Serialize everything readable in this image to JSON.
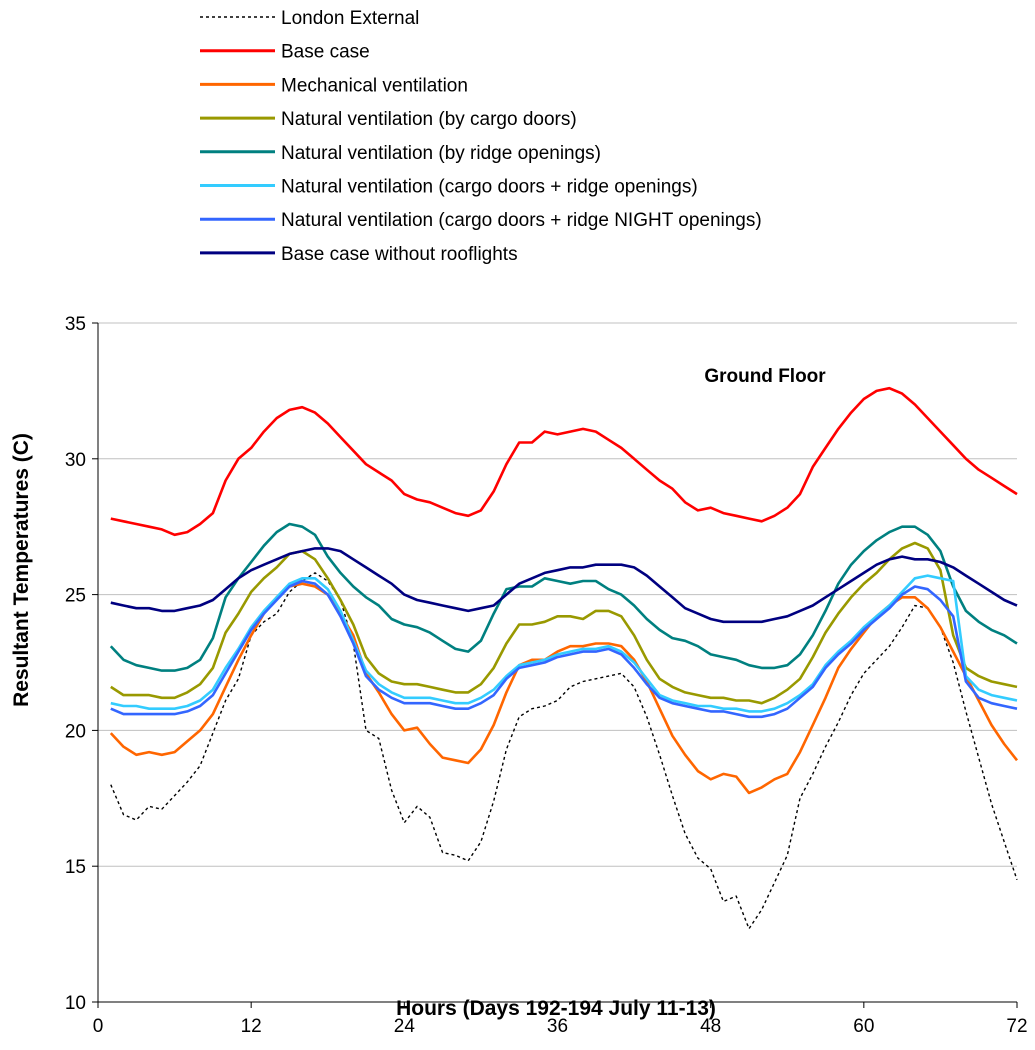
{
  "chart_data": {
    "type": "line",
    "title": "",
    "xlabel": "Hours (Days 192-194 July 11-13)",
    "ylabel": "Resultant Temperatures (C)",
    "xlim": [
      0,
      72
    ],
    "ylim": [
      10,
      35
    ],
    "xticks": [
      0,
      12,
      24,
      36,
      48,
      60,
      72
    ],
    "yticks": [
      10,
      15,
      20,
      25,
      30,
      35
    ],
    "grid": "horizontal",
    "legend_position": "top",
    "annotation": "Ground Floor",
    "series": [
      {
        "name": "London External",
        "color": "#000000",
        "dash": "dotted",
        "x": [
          1,
          2,
          3,
          4,
          5,
          6,
          7,
          8,
          9,
          10,
          11,
          12,
          13,
          14,
          15,
          16,
          17,
          18,
          19,
          20,
          21,
          22,
          23,
          24,
          25,
          26,
          27,
          28,
          29,
          30,
          31,
          32,
          33,
          34,
          35,
          36,
          37,
          38,
          39,
          40,
          41,
          42,
          43,
          44,
          45,
          46,
          47,
          48,
          49,
          50,
          51,
          52,
          53,
          54,
          55,
          56,
          57,
          58,
          59,
          60,
          61,
          62,
          63,
          64,
          65,
          66,
          67,
          68,
          69,
          70,
          71,
          72
        ],
        "y": [
          18.0,
          16.9,
          16.7,
          17.2,
          17.1,
          17.6,
          18.1,
          18.7,
          19.9,
          21.1,
          21.9,
          23.5,
          24.0,
          24.3,
          25.1,
          25.5,
          25.8,
          25.5,
          24.8,
          23.2,
          20.0,
          19.7,
          17.8,
          16.6,
          17.2,
          16.8,
          15.5,
          15.4,
          15.2,
          15.9,
          17.4,
          19.3,
          20.5,
          20.8,
          20.9,
          21.1,
          21.6,
          21.8,
          21.9,
          22.0,
          22.1,
          21.6,
          20.5,
          19.1,
          17.6,
          16.2,
          15.3,
          14.9,
          13.7,
          13.9,
          12.7,
          13.4,
          14.4,
          15.4,
          17.5,
          18.4,
          19.4,
          20.3,
          21.3,
          22.1,
          22.6,
          23.1,
          23.8,
          24.6,
          24.5,
          23.8,
          22.5,
          20.7,
          19.0,
          17.3,
          15.9,
          14.5
        ]
      },
      {
        "name": "Base case",
        "color": "#ff0000",
        "dash": "solid",
        "x": [
          1,
          2,
          3,
          4,
          5,
          6,
          7,
          8,
          9,
          10,
          11,
          12,
          13,
          14,
          15,
          16,
          17,
          18,
          19,
          20,
          21,
          22,
          23,
          24,
          25,
          26,
          27,
          28,
          29,
          30,
          31,
          32,
          33,
          34,
          35,
          36,
          37,
          38,
          39,
          40,
          41,
          42,
          43,
          44,
          45,
          46,
          47,
          48,
          49,
          50,
          51,
          52,
          53,
          54,
          55,
          56,
          57,
          58,
          59,
          60,
          61,
          62,
          63,
          64,
          65,
          66,
          67,
          68,
          69,
          70,
          71,
          72
        ],
        "y": [
          27.8,
          27.7,
          27.6,
          27.5,
          27.4,
          27.2,
          27.3,
          27.6,
          28.0,
          29.2,
          30.0,
          30.4,
          31.0,
          31.5,
          31.8,
          31.9,
          31.7,
          31.3,
          30.8,
          30.3,
          29.8,
          29.5,
          29.2,
          28.7,
          28.5,
          28.4,
          28.2,
          28.0,
          27.9,
          28.1,
          28.8,
          29.8,
          30.6,
          30.6,
          31.0,
          30.9,
          31.0,
          31.1,
          31.0,
          30.7,
          30.4,
          30.0,
          29.6,
          29.2,
          28.9,
          28.4,
          28.1,
          28.2,
          28.0,
          27.9,
          27.8,
          27.7,
          27.9,
          28.2,
          28.7,
          29.7,
          30.4,
          31.1,
          31.7,
          32.2,
          32.5,
          32.6,
          32.4,
          32.0,
          31.5,
          31.0,
          30.5,
          30.0,
          29.6,
          29.3,
          29.0,
          28.7
        ]
      },
      {
        "name": "Mechanical ventilation",
        "color": "#ff6600",
        "dash": "solid",
        "x": [
          1,
          2,
          3,
          4,
          5,
          6,
          7,
          8,
          9,
          10,
          11,
          12,
          13,
          14,
          15,
          16,
          17,
          18,
          19,
          20,
          21,
          22,
          23,
          24,
          25,
          26,
          27,
          28,
          29,
          30,
          31,
          32,
          33,
          34,
          35,
          36,
          37,
          38,
          39,
          40,
          41,
          42,
          43,
          44,
          45,
          46,
          47,
          48,
          49,
          50,
          51,
          52,
          53,
          54,
          55,
          56,
          57,
          58,
          59,
          60,
          61,
          62,
          63,
          64,
          65,
          66,
          67,
          68,
          69,
          70,
          71,
          72
        ],
        "y": [
          19.9,
          19.4,
          19.1,
          19.2,
          19.1,
          19.2,
          19.6,
          20.0,
          20.6,
          21.6,
          22.6,
          23.5,
          24.3,
          24.9,
          25.3,
          25.4,
          25.3,
          25.0,
          24.3,
          23.5,
          22.1,
          21.4,
          20.6,
          20.0,
          20.1,
          19.5,
          19.0,
          18.9,
          18.8,
          19.3,
          20.2,
          21.4,
          22.4,
          22.6,
          22.6,
          22.9,
          23.1,
          23.1,
          23.2,
          23.2,
          23.1,
          22.6,
          21.8,
          20.8,
          19.8,
          19.1,
          18.5,
          18.2,
          18.4,
          18.3,
          17.7,
          17.9,
          18.2,
          18.4,
          19.2,
          20.2,
          21.2,
          22.3,
          23.0,
          23.6,
          24.2,
          24.6,
          24.9,
          24.9,
          24.5,
          23.8,
          22.9,
          22.0,
          21.1,
          20.2,
          19.5,
          18.9
        ]
      },
      {
        "name": "Natural ventilation (by cargo doors)",
        "color": "#999900",
        "dash": "solid",
        "x": [
          1,
          2,
          3,
          4,
          5,
          6,
          7,
          8,
          9,
          10,
          11,
          12,
          13,
          14,
          15,
          16,
          17,
          18,
          19,
          20,
          21,
          22,
          23,
          24,
          25,
          26,
          27,
          28,
          29,
          30,
          31,
          32,
          33,
          34,
          35,
          36,
          37,
          38,
          39,
          40,
          41,
          42,
          43,
          44,
          45,
          46,
          47,
          48,
          49,
          50,
          51,
          52,
          53,
          54,
          55,
          56,
          57,
          58,
          59,
          60,
          61,
          62,
          63,
          64,
          65,
          66,
          67,
          68,
          69,
          70,
          71,
          72
        ],
        "y": [
          21.6,
          21.3,
          21.3,
          21.3,
          21.2,
          21.2,
          21.4,
          21.7,
          22.3,
          23.6,
          24.3,
          25.1,
          25.6,
          26.0,
          26.5,
          26.6,
          26.3,
          25.6,
          24.8,
          23.9,
          22.7,
          22.1,
          21.8,
          21.7,
          21.7,
          21.6,
          21.5,
          21.4,
          21.4,
          21.7,
          22.3,
          23.2,
          23.9,
          23.9,
          24.0,
          24.2,
          24.2,
          24.1,
          24.4,
          24.4,
          24.2,
          23.5,
          22.6,
          21.9,
          21.6,
          21.4,
          21.3,
          21.2,
          21.2,
          21.1,
          21.1,
          21.0,
          21.2,
          21.5,
          21.9,
          22.7,
          23.6,
          24.3,
          24.9,
          25.4,
          25.8,
          26.3,
          26.7,
          26.9,
          26.7,
          25.9,
          23.5,
          22.3,
          22.0,
          21.8,
          21.7,
          21.6
        ]
      },
      {
        "name": "Natural ventilation (by ridge openings)",
        "color": "#008080",
        "dash": "solid",
        "x": [
          1,
          2,
          3,
          4,
          5,
          6,
          7,
          8,
          9,
          10,
          11,
          12,
          13,
          14,
          15,
          16,
          17,
          18,
          19,
          20,
          21,
          22,
          23,
          24,
          25,
          26,
          27,
          28,
          29,
          30,
          31,
          32,
          33,
          34,
          35,
          36,
          37,
          38,
          39,
          40,
          41,
          42,
          43,
          44,
          45,
          46,
          47,
          48,
          49,
          50,
          51,
          52,
          53,
          54,
          55,
          56,
          57,
          58,
          59,
          60,
          61,
          62,
          63,
          64,
          65,
          66,
          67,
          68,
          69,
          70,
          71,
          72
        ],
        "y": [
          23.1,
          22.6,
          22.4,
          22.3,
          22.2,
          22.2,
          22.3,
          22.6,
          23.4,
          24.9,
          25.6,
          26.2,
          26.8,
          27.3,
          27.6,
          27.5,
          27.2,
          26.4,
          25.8,
          25.3,
          24.9,
          24.6,
          24.1,
          23.9,
          23.8,
          23.6,
          23.3,
          23.0,
          22.9,
          23.3,
          24.3,
          25.2,
          25.3,
          25.3,
          25.6,
          25.5,
          25.4,
          25.5,
          25.5,
          25.2,
          25.0,
          24.6,
          24.1,
          23.7,
          23.4,
          23.3,
          23.1,
          22.8,
          22.7,
          22.6,
          22.4,
          22.3,
          22.3,
          22.4,
          22.8,
          23.5,
          24.4,
          25.4,
          26.1,
          26.6,
          27.0,
          27.3,
          27.5,
          27.5,
          27.2,
          26.6,
          25.3,
          24.4,
          24.0,
          23.7,
          23.5,
          23.2
        ]
      },
      {
        "name": "Natural ventilation (cargo doors + ridge openings)",
        "color": "#33ccff",
        "dash": "solid",
        "x": [
          1,
          2,
          3,
          4,
          5,
          6,
          7,
          8,
          9,
          10,
          11,
          12,
          13,
          14,
          15,
          16,
          17,
          18,
          19,
          20,
          21,
          22,
          23,
          24,
          25,
          26,
          27,
          28,
          29,
          30,
          31,
          32,
          33,
          34,
          35,
          36,
          37,
          38,
          39,
          40,
          41,
          42,
          43,
          44,
          45,
          46,
          47,
          48,
          49,
          50,
          51,
          52,
          53,
          54,
          55,
          56,
          57,
          58,
          59,
          60,
          61,
          62,
          63,
          64,
          65,
          66,
          67,
          68,
          69,
          70,
          71,
          72
        ],
        "y": [
          21.0,
          20.9,
          20.9,
          20.8,
          20.8,
          20.8,
          20.9,
          21.1,
          21.5,
          22.3,
          23.0,
          23.8,
          24.4,
          24.9,
          25.4,
          25.6,
          25.6,
          25.2,
          24.4,
          23.3,
          22.2,
          21.7,
          21.4,
          21.2,
          21.2,
          21.2,
          21.1,
          21.0,
          21.0,
          21.2,
          21.5,
          22.0,
          22.4,
          22.5,
          22.6,
          22.8,
          22.9,
          23.0,
          23.0,
          23.1,
          22.9,
          22.5,
          21.9,
          21.3,
          21.1,
          21.0,
          20.9,
          20.9,
          20.8,
          20.8,
          20.7,
          20.7,
          20.8,
          21.0,
          21.3,
          21.7,
          22.4,
          22.9,
          23.3,
          23.8,
          24.2,
          24.6,
          25.1,
          25.6,
          25.7,
          25.6,
          25.5,
          22.0,
          21.5,
          21.3,
          21.2,
          21.1
        ]
      },
      {
        "name": "Natural ventilation (cargo doors + ridge NIGHT openings)",
        "color": "#3366ff",
        "dash": "solid",
        "x": [
          1,
          2,
          3,
          4,
          5,
          6,
          7,
          8,
          9,
          10,
          11,
          12,
          13,
          14,
          15,
          16,
          17,
          18,
          19,
          20,
          21,
          22,
          23,
          24,
          25,
          26,
          27,
          28,
          29,
          30,
          31,
          32,
          33,
          34,
          35,
          36,
          37,
          38,
          39,
          40,
          41,
          42,
          43,
          44,
          45,
          46,
          47,
          48,
          49,
          50,
          51,
          52,
          53,
          54,
          55,
          56,
          57,
          58,
          59,
          60,
          61,
          62,
          63,
          64,
          65,
          66,
          67,
          68,
          69,
          70,
          71,
          72
        ],
        "y": [
          20.8,
          20.6,
          20.6,
          20.6,
          20.6,
          20.6,
          20.7,
          20.9,
          21.3,
          22.1,
          22.9,
          23.7,
          24.3,
          24.8,
          25.3,
          25.5,
          25.4,
          25.0,
          24.2,
          23.2,
          22.0,
          21.5,
          21.2,
          21.0,
          21.0,
          21.0,
          20.9,
          20.8,
          20.8,
          21.0,
          21.3,
          21.9,
          22.3,
          22.4,
          22.5,
          22.7,
          22.8,
          22.9,
          22.9,
          23.0,
          22.8,
          22.3,
          21.7,
          21.2,
          21.0,
          20.9,
          20.8,
          20.7,
          20.7,
          20.6,
          20.5,
          20.5,
          20.6,
          20.8,
          21.2,
          21.6,
          22.3,
          22.8,
          23.2,
          23.7,
          24.1,
          24.5,
          25.0,
          25.3,
          25.2,
          24.8,
          24.2,
          21.8,
          21.2,
          21.0,
          20.9,
          20.8
        ]
      },
      {
        "name": "Base case without rooflights",
        "color": "#000080",
        "dash": "solid",
        "x": [
          1,
          2,
          3,
          4,
          5,
          6,
          7,
          8,
          9,
          10,
          11,
          12,
          13,
          14,
          15,
          16,
          17,
          18,
          19,
          20,
          21,
          22,
          23,
          24,
          25,
          26,
          27,
          28,
          29,
          30,
          31,
          32,
          33,
          34,
          35,
          36,
          37,
          38,
          39,
          40,
          41,
          42,
          43,
          44,
          45,
          46,
          47,
          48,
          49,
          50,
          51,
          52,
          53,
          54,
          55,
          56,
          57,
          58,
          59,
          60,
          61,
          62,
          63,
          64,
          65,
          66,
          67,
          68,
          69,
          70,
          71,
          72
        ],
        "y": [
          24.7,
          24.6,
          24.5,
          24.5,
          24.4,
          24.4,
          24.5,
          24.6,
          24.8,
          25.2,
          25.6,
          25.9,
          26.1,
          26.3,
          26.5,
          26.6,
          26.7,
          26.7,
          26.6,
          26.3,
          26.0,
          25.7,
          25.4,
          25.0,
          24.8,
          24.7,
          24.6,
          24.5,
          24.4,
          24.5,
          24.6,
          25.0,
          25.4,
          25.6,
          25.8,
          25.9,
          26.0,
          26.0,
          26.1,
          26.1,
          26.1,
          26.0,
          25.7,
          25.3,
          24.9,
          24.5,
          24.3,
          24.1,
          24.0,
          24.0,
          24.0,
          24.0,
          24.1,
          24.2,
          24.4,
          24.6,
          24.9,
          25.2,
          25.5,
          25.8,
          26.1,
          26.3,
          26.4,
          26.3,
          26.3,
          26.2,
          26.0,
          25.7,
          25.4,
          25.1,
          24.8,
          24.6
        ]
      }
    ]
  }
}
